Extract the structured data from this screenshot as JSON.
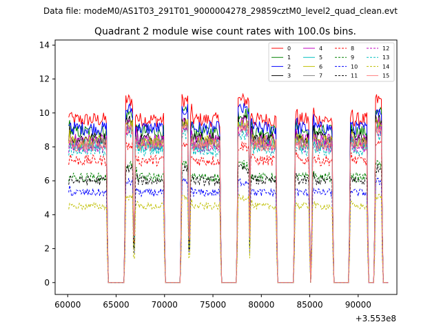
{
  "chart_data": {
    "type": "line",
    "suptitle": "Data file: modeM0/AS1T03_291T01_9000004278_29859cztM0_level2_quad_clean.evt",
    "title": "Quadrant 2 module wise count rates with 100.0s bins.",
    "xlabel": "",
    "ylabel": "",
    "x_offset_label": "+3.553e8",
    "xlim": [
      58700,
      94000
    ],
    "ylim": [
      -0.7,
      14.3
    ],
    "xticks": [
      60000,
      65000,
      70000,
      75000,
      80000,
      85000,
      90000
    ],
    "xtick_labels": [
      "60000",
      "65000",
      "70000",
      "75000",
      "80000",
      "85000",
      "90000"
    ],
    "yticks": [
      0,
      2,
      4,
      6,
      8,
      10,
      12,
      14
    ],
    "ytick_labels": [
      "0",
      "2",
      "4",
      "6",
      "8",
      "10",
      "12",
      "14"
    ],
    "grid": false,
    "legend_position": "top-right",
    "legend_columns": 4,
    "on_segments": [
      [
        60100,
        64000
      ],
      [
        66000,
        66700
      ],
      [
        67000,
        69900
      ],
      [
        71800,
        72400
      ],
      [
        72700,
        75700
      ],
      [
        77600,
        78700
      ],
      [
        78900,
        81500
      ],
      [
        83500,
        84900
      ],
      [
        85300,
        87300
      ],
      [
        89200,
        90900
      ],
      [
        91800,
        92400
      ]
    ],
    "transition_time": 150,
    "series": [
      {
        "name": "0",
        "level": 9.6,
        "color": "#ff0000",
        "dash": "solid"
      },
      {
        "name": "1",
        "level": 8.9,
        "color": "#008000",
        "dash": "solid"
      },
      {
        "name": "2",
        "level": 9.1,
        "color": "#0000ff",
        "dash": "solid"
      },
      {
        "name": "3",
        "level": 8.5,
        "color": "#000000",
        "dash": "solid"
      },
      {
        "name": "4",
        "level": 8.4,
        "color": "#bf00bf",
        "dash": "solid"
      },
      {
        "name": "5",
        "level": 8.1,
        "color": "#00bfbf",
        "dash": "solid"
      },
      {
        "name": "6",
        "level": 8.3,
        "color": "#bfbf00",
        "dash": "solid"
      },
      {
        "name": "7",
        "level": 8.2,
        "color": "#808080",
        "dash": "solid"
      },
      {
        "name": "8",
        "level": 7.2,
        "color": "#ff0000",
        "dash": "dashed"
      },
      {
        "name": "9",
        "level": 6.2,
        "color": "#008000",
        "dash": "dashed"
      },
      {
        "name": "10",
        "level": 5.3,
        "color": "#0000ff",
        "dash": "dashed"
      },
      {
        "name": "11",
        "level": 6.0,
        "color": "#000000",
        "dash": "dashed"
      },
      {
        "name": "12",
        "level": 8.0,
        "color": "#bf00bf",
        "dash": "dashed"
      },
      {
        "name": "13",
        "level": 7.8,
        "color": "#00bfbf",
        "dash": "dashed"
      },
      {
        "name": "14",
        "level": 4.5,
        "color": "#bfbf00",
        "dash": "dashed"
      },
      {
        "name": "15",
        "level": 8.1,
        "color": "#ff7f7f",
        "dash": "solid"
      }
    ]
  }
}
